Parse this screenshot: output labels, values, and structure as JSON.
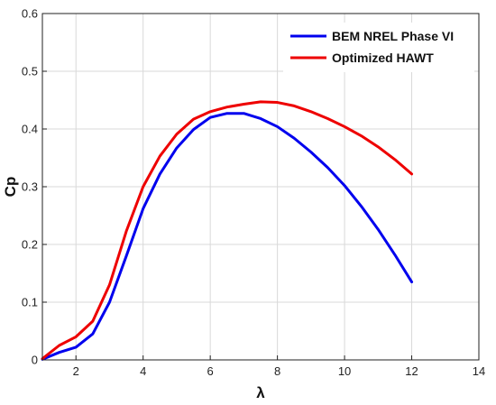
{
  "chart_data": {
    "type": "line",
    "xlabel": "λ",
    "ylabel": "Cp",
    "xlim": [
      1,
      14
    ],
    "ylim": [
      0,
      0.6
    ],
    "xticks": [
      2,
      4,
      6,
      8,
      10,
      12,
      14
    ],
    "yticks": [
      0,
      0.1,
      0.2,
      0.3,
      0.4,
      0.5,
      0.6
    ],
    "grid": true,
    "legend": "top-right",
    "series": [
      {
        "name": "BEM NREL Phase VI",
        "color": "#0000ee",
        "x": [
          1,
          1.5,
          2,
          2.5,
          3,
          3.5,
          4,
          4.5,
          5,
          5.5,
          6,
          6.5,
          7,
          7.5,
          8,
          8.5,
          9,
          9.5,
          10,
          10.5,
          11,
          11.5,
          12
        ],
        "y": [
          0.001,
          0.013,
          0.022,
          0.045,
          0.1,
          0.18,
          0.262,
          0.322,
          0.367,
          0.399,
          0.42,
          0.427,
          0.427,
          0.418,
          0.404,
          0.384,
          0.36,
          0.333,
          0.302,
          0.266,
          0.226,
          0.182,
          0.135
        ]
      },
      {
        "name": "Optimized HAWT",
        "color": "#ee0000",
        "x": [
          1,
          1.5,
          2,
          2.5,
          3,
          3.5,
          4,
          4.5,
          5,
          5.5,
          6,
          6.5,
          7,
          7.5,
          8,
          8.5,
          9,
          9.5,
          10,
          10.5,
          11,
          11.5,
          12
        ],
        "y": [
          0.002,
          0.025,
          0.04,
          0.067,
          0.13,
          0.223,
          0.3,
          0.353,
          0.391,
          0.417,
          0.43,
          0.438,
          0.443,
          0.447,
          0.446,
          0.44,
          0.43,
          0.418,
          0.404,
          0.388,
          0.369,
          0.347,
          0.322
        ]
      }
    ]
  }
}
